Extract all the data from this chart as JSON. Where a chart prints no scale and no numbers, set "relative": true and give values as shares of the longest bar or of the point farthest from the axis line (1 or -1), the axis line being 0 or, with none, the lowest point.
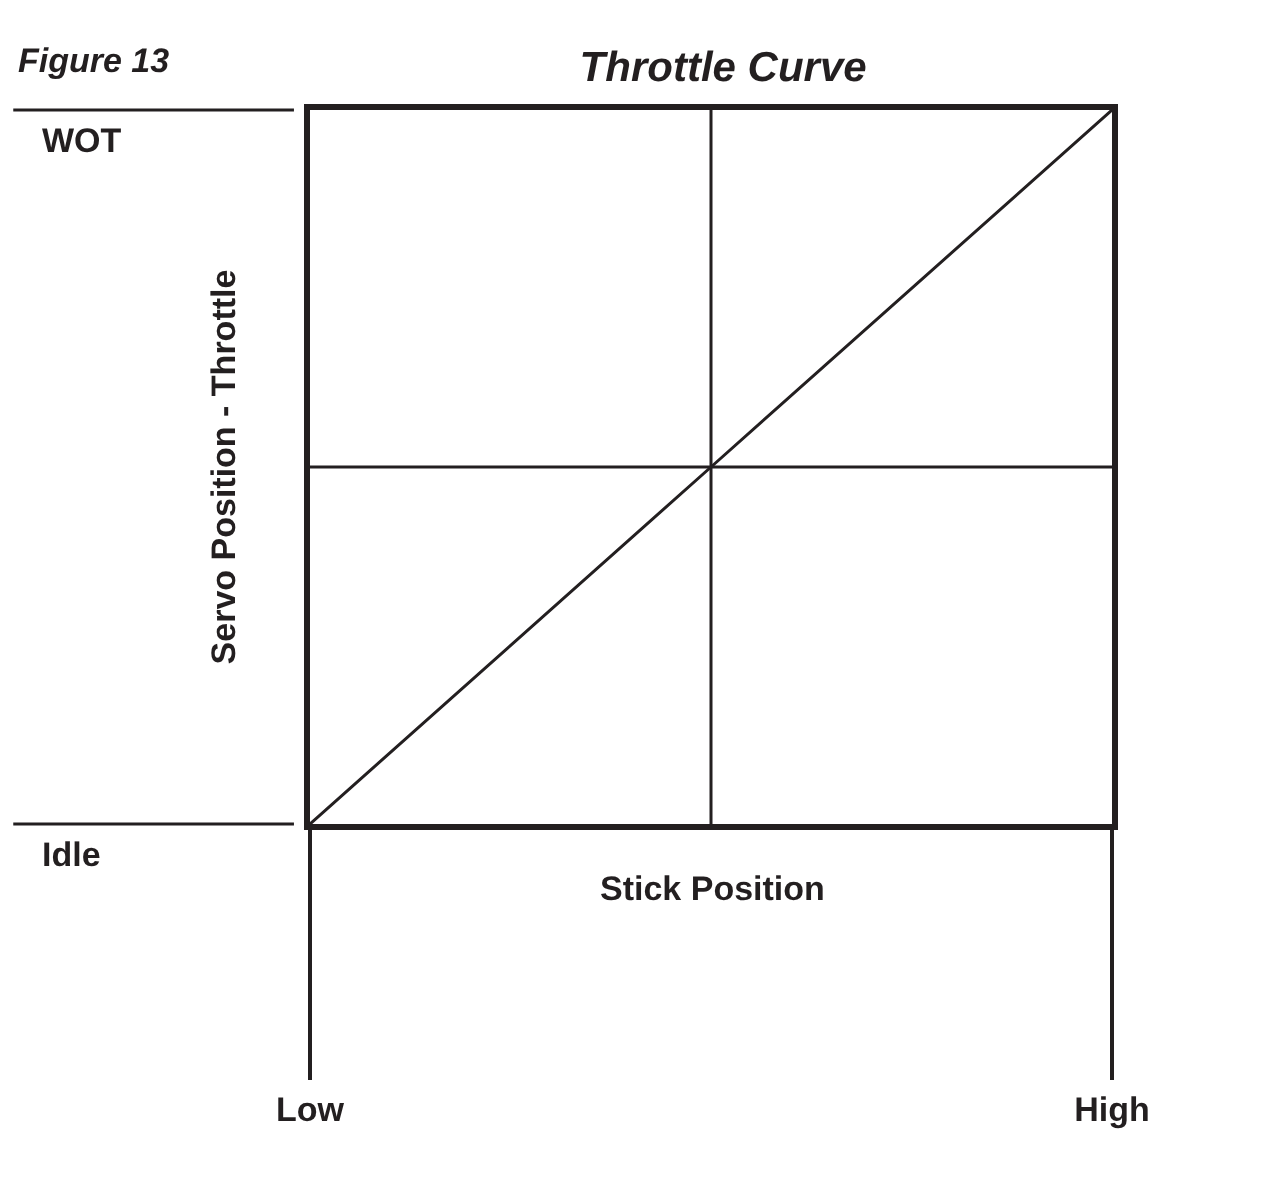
{
  "chart_data": {
    "type": "line",
    "title": "Throttle Curve",
    "xlabel": "Stick Position",
    "ylabel": "Servo Position - Throttle",
    "categories": [
      "Low",
      null,
      "High"
    ],
    "relative": true,
    "series": [
      {
        "color": "#231f20",
        "values": [
          0,
          0.5,
          1
        ]
      }
    ],
    "grid": true,
    "marker": "none",
    "line_style": "solid",
    "annotations": [
      "Figure 13",
      "WOT",
      "Idle"
    ]
  }
}
